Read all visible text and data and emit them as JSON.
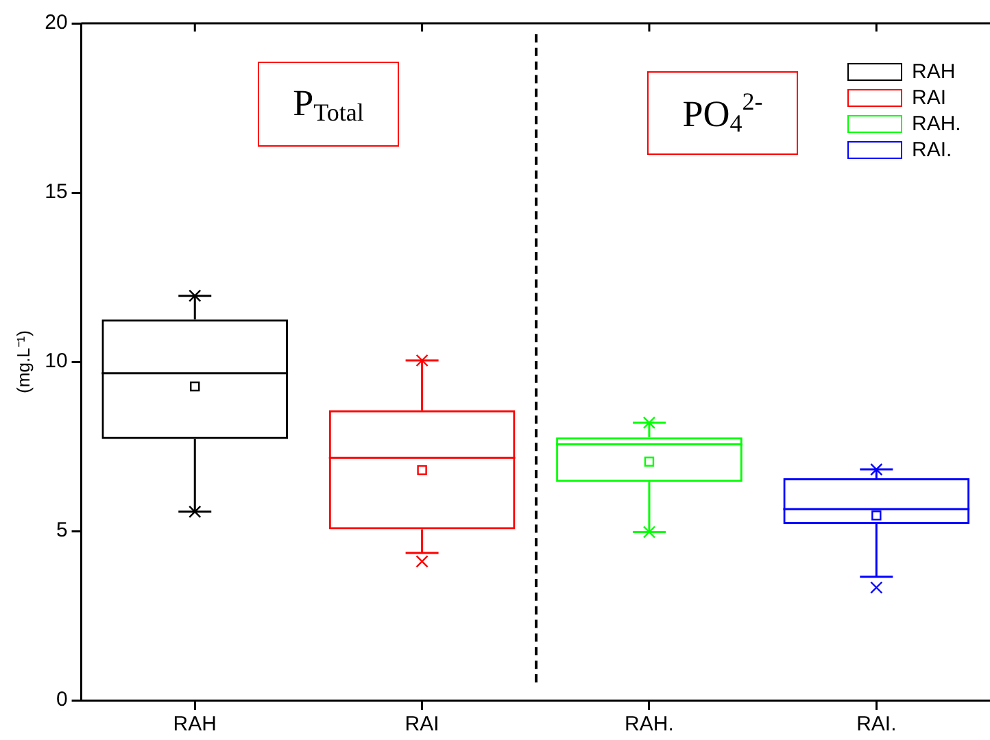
{
  "chart_data": {
    "type": "box",
    "categories": [
      "RAH",
      "RAI",
      "RAH.",
      "RAI."
    ],
    "ylabel": "(mg.L⁻¹)",
    "ylim": [
      0,
      20
    ],
    "yticks": [
      0,
      5,
      10,
      15,
      20
    ],
    "grid": false,
    "legend": "top right",
    "annotations": [
      "P$_{Total}$",
      "PO$_{4}$$^{2-}$"
    ],
    "series": [
      {
        "name": "RAH",
        "color": "#000000",
        "boxes": [
          {
            "low": 5.57,
            "q1": 7.72,
            "median": 9.66,
            "q3": 11.25,
            "high": 11.95,
            "mean": 9.27,
            "outliers": [
              11.95,
              5.57
            ]
          },
          null,
          null,
          null
        ]
      },
      {
        "name": "RAI",
        "color": "#ff0000",
        "boxes": [
          null,
          {
            "low": 4.35,
            "q1": 5.05,
            "median": 7.16,
            "q3": 8.57,
            "high": 10.04,
            "mean": 6.8,
            "outliers": [
              10.04,
              4.1
            ]
          },
          null,
          null
        ]
      },
      {
        "name": "RAH.",
        "color": "#00ff00",
        "boxes": [
          null,
          null,
          {
            "low": 4.97,
            "q1": 6.45,
            "median": 7.56,
            "q3": 7.77,
            "high": 8.2,
            "mean": 7.05,
            "outliers": [
              8.2,
              4.97
            ]
          },
          null
        ]
      },
      {
        "name": "RAI.",
        "color": "#0000ff",
        "boxes": [
          null,
          null,
          null,
          {
            "low": 3.65,
            "q1": 5.2,
            "median": 5.65,
            "q3": 6.56,
            "high": 6.82,
            "mean": 5.46,
            "outliers": [
              6.82,
              3.33
            ]
          }
        ]
      }
    ]
  }
}
